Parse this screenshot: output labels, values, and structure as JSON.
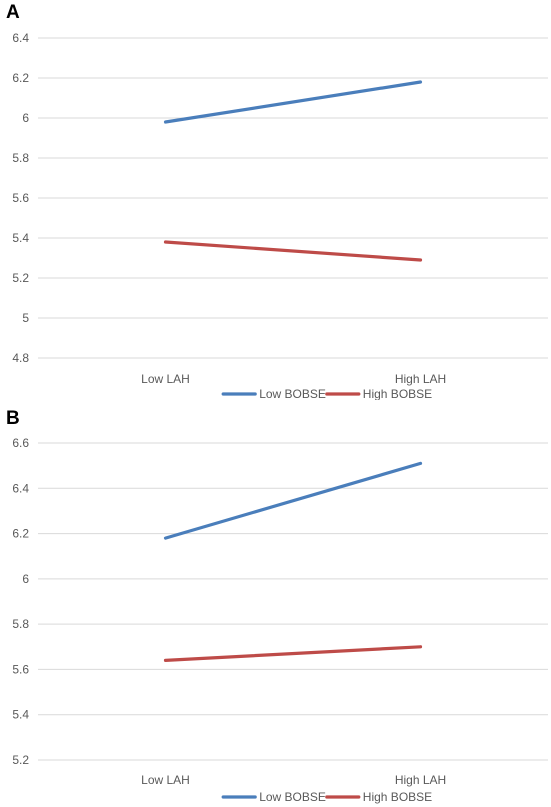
{
  "chart_data": [
    {
      "panel": "A",
      "type": "line",
      "categories": [
        "Low LAH",
        "High LAH"
      ],
      "yticks": [
        "4.8",
        "5",
        "5.2",
        "5.4",
        "5.6",
        "5.8",
        "6",
        "6.2",
        "6.4"
      ],
      "ylim": [
        4.8,
        6.4
      ],
      "grid": true,
      "legend_position": "bottom",
      "series": [
        {
          "name": "Low BOBSE",
          "color": "#4a7ebb",
          "values": [
            5.98,
            6.18
          ]
        },
        {
          "name": "High BOBSE",
          "color": "#be4b48",
          "values": [
            5.38,
            5.29
          ]
        }
      ]
    },
    {
      "panel": "B",
      "type": "line",
      "categories": [
        "Low LAH",
        "High LAH"
      ],
      "yticks": [
        "5.2",
        "5.4",
        "5.6",
        "5.8",
        "6",
        "6.2",
        "6.4",
        "6.6"
      ],
      "ylim": [
        5.2,
        6.6
      ],
      "grid": true,
      "legend_position": "bottom",
      "series": [
        {
          "name": "Low BOBSE",
          "color": "#4a7ebb",
          "values": [
            6.18,
            6.51
          ]
        },
        {
          "name": "High BOBSE",
          "color": "#be4b48",
          "values": [
            5.64,
            5.7
          ]
        }
      ]
    }
  ]
}
